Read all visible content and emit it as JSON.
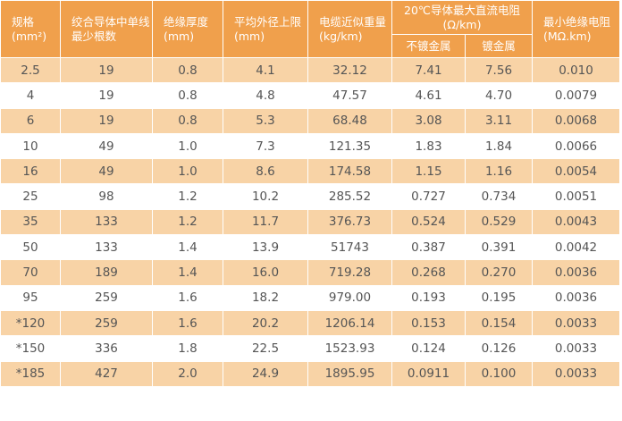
{
  "headers": {
    "spec": [
      "规格",
      "(mm²)"
    ],
    "strands": [
      "绞合导体中单线",
      "最少根数"
    ],
    "insulation": [
      "绝缘厚度",
      "(mm)"
    ],
    "diameter": [
      "平均外径上限",
      "(mm)"
    ],
    "weight": [
      "电缆近似重量",
      "(kg/km)"
    ],
    "resistance": [
      "20℃导体最大直流电阻",
      "(Ω/km)"
    ],
    "resistance_plain": "不镀金属",
    "resistance_plated": "镀金属",
    "insul_resistance": [
      "最小绝缘电阻",
      "(MΩ.km)"
    ]
  },
  "rows": [
    [
      "2.5",
      "19",
      "0.8",
      "4.1",
      "32.12",
      "7.41",
      "7.56",
      "0.010"
    ],
    [
      "4",
      "19",
      "0.8",
      "4.8",
      "47.57",
      "4.61",
      "4.70",
      "0.0079"
    ],
    [
      "6",
      "19",
      "0.8",
      "5.3",
      "68.48",
      "3.08",
      "3.11",
      "0.0068"
    ],
    [
      "10",
      "49",
      "1.0",
      "7.3",
      "121.35",
      "1.83",
      "1.84",
      "0.0066"
    ],
    [
      "16",
      "49",
      "1.0",
      "8.6",
      "174.58",
      "1.15",
      "1.16",
      "0.0054"
    ],
    [
      "25",
      "98",
      "1.2",
      "10.2",
      "285.52",
      "0.727",
      "0.734",
      "0.0051"
    ],
    [
      "35",
      "133",
      "1.2",
      "11.7",
      "376.73",
      "0.524",
      "0.529",
      "0.0043"
    ],
    [
      "50",
      "133",
      "1.4",
      "13.9",
      "51743",
      "0.387",
      "0.391",
      "0.0042"
    ],
    [
      "70",
      "189",
      "1.4",
      "16.0",
      "719.28",
      "0.268",
      "0.270",
      "0.0036"
    ],
    [
      "95",
      "259",
      "1.6",
      "18.2",
      "979.00",
      "0.193",
      "0.195",
      "0.0036"
    ],
    [
      "*120",
      "259",
      "1.6",
      "20.2",
      "1206.14",
      "0.153",
      "0.154",
      "0.0033"
    ],
    [
      "*150",
      "336",
      "1.8",
      "22.5",
      "1523.93",
      "0.124",
      "0.126",
      "0.0033"
    ],
    [
      "*185",
      "427",
      "2.0",
      "24.9",
      "1895.95",
      "0.0911",
      "0.100",
      "0.0033"
    ]
  ],
  "colors": {
    "header_bg": "#f0a04c",
    "band_bg": "#f8d3a6",
    "header_text": "#ffffff",
    "cell_text": "#555555"
  }
}
